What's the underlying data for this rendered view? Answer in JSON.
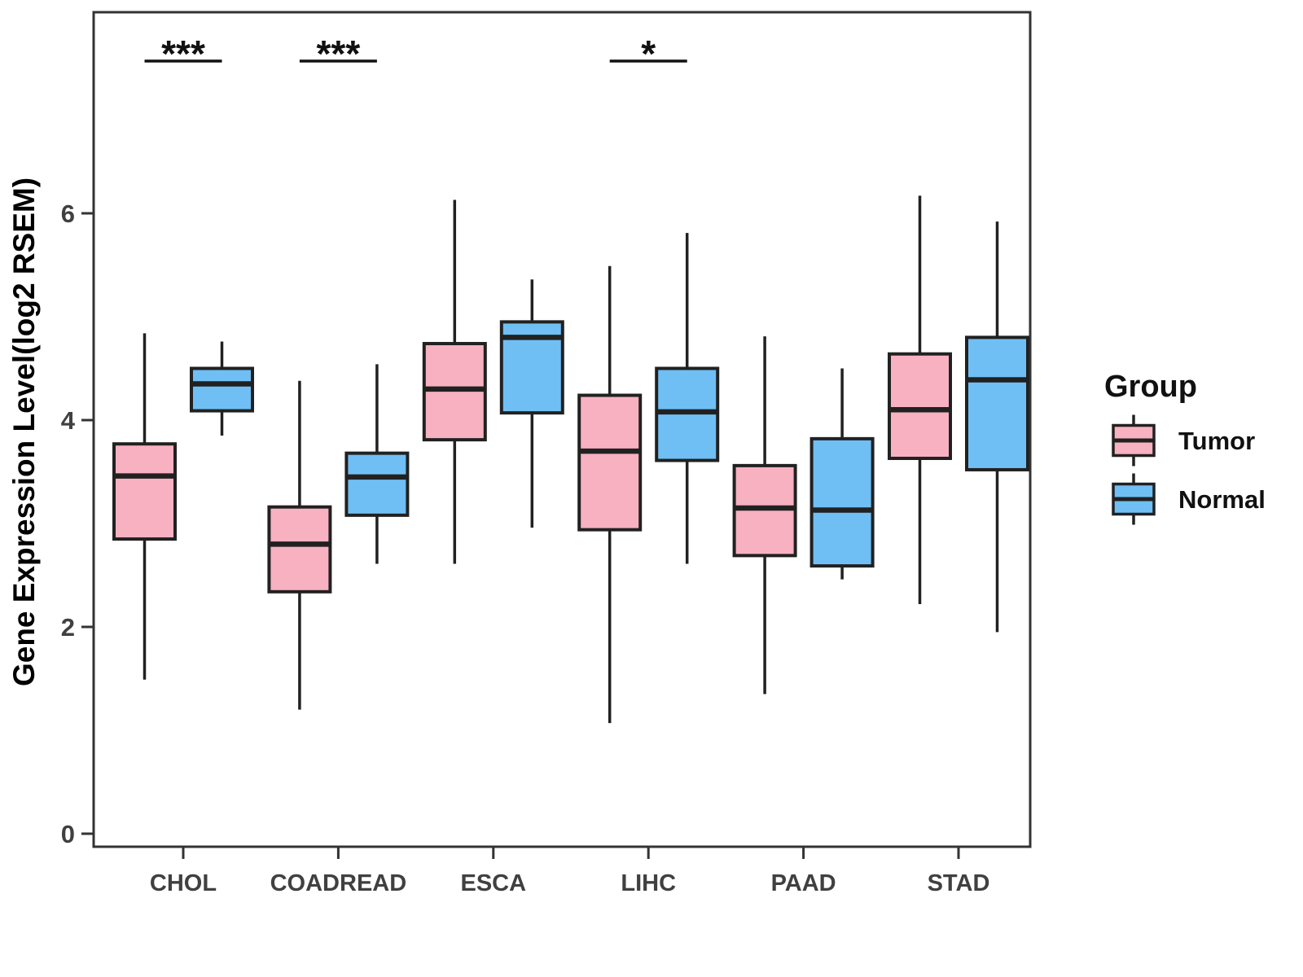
{
  "figure": {
    "background": "#ffffff"
  },
  "y_axis": {
    "title": "Gene Expression Level(log2 RSEM)",
    "tick_labels": [
      "0",
      "2",
      "4",
      "6"
    ],
    "tick_values": [
      0,
      2,
      4,
      6
    ]
  },
  "x_axis": {
    "tick_labels": [
      "CHOL",
      "COADREAD",
      "ESCA",
      "LIHC",
      "PAAD",
      "STAD"
    ]
  },
  "legend": {
    "title": "Group",
    "items": [
      {
        "label": "Tumor",
        "color": "#F8B1C1"
      },
      {
        "label": "Normal",
        "color": "#6FBFF5"
      }
    ]
  },
  "colors": {
    "tumor_fill": "#F8B1C1",
    "normal_fill": "#6FBFF5",
    "box_border": "#212121",
    "panel_border": "#333333",
    "tick_label": "#404040",
    "annotation": "#111111",
    "y_title": "#000000"
  },
  "chart_data": {
    "type": "boxplot",
    "title": "",
    "xlabel": "",
    "ylabel": "Gene Expression Level(log2 RSEM)",
    "categories": [
      "CHOL",
      "COADREAD",
      "ESCA",
      "LIHC",
      "PAAD",
      "STAD"
    ],
    "groups": [
      "Tumor",
      "Normal"
    ],
    "ylim": [
      -0.13,
      7.94
    ],
    "y_ticks": [
      0,
      2,
      4,
      6
    ],
    "grid": false,
    "legend_position": "right",
    "series": [
      {
        "name": "Tumor",
        "color": "#F8B1C1",
        "boxes": [
          {
            "category": "CHOL",
            "min": 1.49,
            "q1": 2.85,
            "median": 3.46,
            "q3": 3.77,
            "max": 4.84
          },
          {
            "category": "COADREAD",
            "min": 1.2,
            "q1": 2.34,
            "median": 2.8,
            "q3": 3.16,
            "max": 4.38
          },
          {
            "category": "ESCA",
            "min": 2.61,
            "q1": 3.81,
            "median": 4.3,
            "q3": 4.74,
            "max": 6.13
          },
          {
            "category": "LIHC",
            "min": 1.07,
            "q1": 2.94,
            "median": 3.7,
            "q3": 4.24,
            "max": 5.49
          },
          {
            "category": "PAAD",
            "min": 1.35,
            "q1": 2.69,
            "median": 3.15,
            "q3": 3.56,
            "max": 4.81
          },
          {
            "category": "STAD",
            "min": 2.22,
            "q1": 3.63,
            "median": 4.1,
            "q3": 4.64,
            "max": 6.17
          }
        ]
      },
      {
        "name": "Normal",
        "color": "#6FBFF5",
        "boxes": [
          {
            "category": "CHOL",
            "min": 3.85,
            "q1": 4.09,
            "median": 4.35,
            "q3": 4.5,
            "max": 4.76
          },
          {
            "category": "COADREAD",
            "min": 2.61,
            "q1": 3.08,
            "median": 3.45,
            "q3": 3.68,
            "max": 4.54
          },
          {
            "category": "ESCA",
            "min": 2.96,
            "q1": 4.07,
            "median": 4.8,
            "q3": 4.95,
            "max": 5.36
          },
          {
            "category": "LIHC",
            "min": 2.61,
            "q1": 3.61,
            "median": 4.08,
            "q3": 4.5,
            "max": 5.81
          },
          {
            "category": "PAAD",
            "min": 2.46,
            "q1": 2.59,
            "median": 3.13,
            "q3": 3.82,
            "max": 4.5
          },
          {
            "category": "STAD",
            "min": 1.95,
            "q1": 3.52,
            "median": 4.39,
            "q3": 4.8,
            "max": 5.92
          }
        ]
      }
    ],
    "significance": [
      {
        "category": "CHOL",
        "label": "***"
      },
      {
        "category": "COADREAD",
        "label": "***"
      },
      {
        "category": "LIHC",
        "label": "*"
      }
    ]
  }
}
